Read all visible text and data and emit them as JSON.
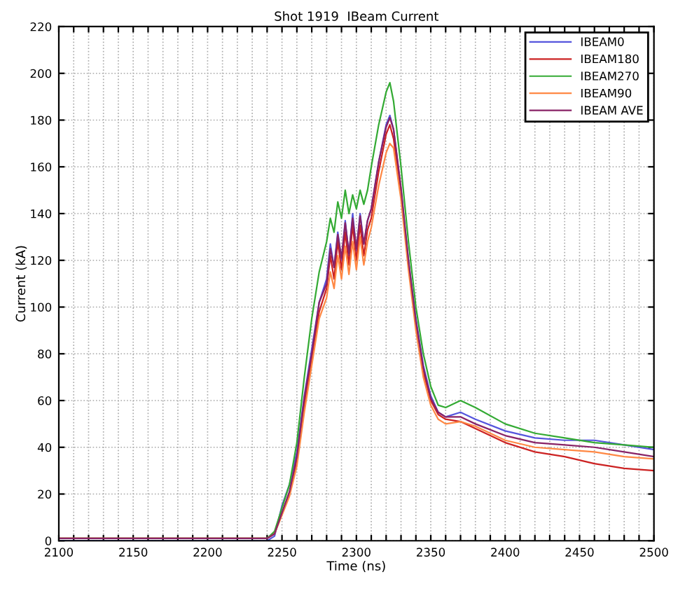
{
  "chart_data": {
    "type": "line",
    "title": "Shot 1919  IBeam Current",
    "xlabel": "Time (ns)",
    "ylabel": "Current (kA)",
    "x": [
      2100,
      2240,
      2245,
      2250,
      2255,
      2260,
      2265,
      2270,
      2275,
      2280,
      2282.5,
      2285,
      2287.5,
      2290,
      2292.5,
      2295,
      2297.5,
      2300,
      2302.5,
      2305,
      2307.5,
      2310,
      2315,
      2320,
      2322.5,
      2325,
      2330,
      2335,
      2340,
      2345,
      2350,
      2355,
      2360,
      2370,
      2380,
      2400,
      2420,
      2440,
      2460,
      2480,
      2500
    ],
    "series": [
      {
        "name": "IBEAM0",
        "color": "#5555dd",
        "values": [
          0,
          0,
          2,
          15,
          24,
          38,
          62,
          82,
          102,
          112,
          127,
          117,
          132,
          120,
          137,
          122,
          140,
          124,
          140,
          127,
          137,
          142,
          162,
          178,
          182,
          176,
          150,
          120,
          95,
          75,
          62,
          55,
          53,
          55,
          52,
          47,
          44,
          43,
          43,
          41,
          39
        ]
      },
      {
        "name": "IBEAM180",
        "color": "#cc2222",
        "values": [
          1,
          1,
          3,
          12,
          20,
          34,
          58,
          78,
          98,
          108,
          122,
          112,
          128,
          116,
          132,
          118,
          135,
          120,
          135,
          122,
          133,
          138,
          158,
          174,
          178,
          172,
          148,
          118,
          92,
          72,
          60,
          54,
          52,
          51,
          48,
          42,
          38,
          36,
          33,
          31,
          30
        ]
      },
      {
        "name": "IBEAM270",
        "color": "#33aa33",
        "values": [
          1,
          1,
          4,
          14,
          24,
          42,
          70,
          95,
          115,
          128,
          138,
          132,
          145,
          138,
          150,
          140,
          148,
          142,
          150,
          144,
          150,
          160,
          178,
          192,
          196,
          188,
          160,
          128,
          100,
          80,
          66,
          58,
          57,
          60,
          57,
          50,
          46,
          44,
          42,
          41,
          40
        ]
      },
      {
        "name": "IBEAM90",
        "color": "#ff8844",
        "values": [
          1,
          1,
          3,
          11,
          19,
          32,
          55,
          75,
          95,
          104,
          115,
          108,
          122,
          112,
          126,
          114,
          128,
          116,
          130,
          118,
          128,
          134,
          152,
          166,
          170,
          168,
          146,
          116,
          90,
          70,
          58,
          52,
          50,
          51,
          49,
          43,
          40,
          39,
          38,
          36,
          35
        ]
      },
      {
        "name": "IBEAM AVE",
        "color": "#882266",
        "values": [
          1,
          1,
          3,
          12,
          21,
          36,
          61,
          80,
          102,
          110,
          125,
          117,
          131,
          121,
          136,
          123,
          138,
          125,
          139,
          127,
          137,
          142,
          162,
          177,
          181,
          176,
          151,
          120,
          94,
          74,
          61,
          55,
          53,
          53,
          50,
          45,
          42,
          41,
          40,
          38,
          36
        ]
      }
    ],
    "xlim": [
      2100,
      2500
    ],
    "xticks": [
      2100,
      {
        "value": 2110,
        "label": null
      },
      {
        "value": 2120,
        "label": null
      },
      {
        "value": 2130,
        "label": null
      },
      {
        "value": 2140,
        "label": null
      },
      2150,
      {
        "value": 2160,
        "label": null
      },
      {
        "value": 2170,
        "label": null
      },
      {
        "value": 2180,
        "label": null
      },
      {
        "value": 2190,
        "label": null
      },
      2200,
      {
        "value": 2210,
        "label": null
      },
      {
        "value": 2220,
        "label": null
      },
      {
        "value": 2230,
        "label": null
      },
      {
        "value": 2240,
        "label": null
      },
      2250,
      {
        "value": 2260,
        "label": null
      },
      {
        "value": 2270,
        "label": null
      },
      {
        "value": 2280,
        "label": null
      },
      {
        "value": 2290,
        "label": null
      },
      2300,
      {
        "value": 2310,
        "label": null
      },
      {
        "value": 2320,
        "label": null
      },
      {
        "value": 2330,
        "label": null
      },
      {
        "value": 2340,
        "label": null
      },
      2350,
      {
        "value": 2360,
        "label": null
      },
      {
        "value": 2370,
        "label": null
      },
      {
        "value": 2380,
        "label": null
      },
      {
        "value": 2390,
        "label": null
      },
      2400,
      {
        "value": 2410,
        "label": null
      },
      {
        "value": 2420,
        "label": null
      },
      {
        "value": 2430,
        "label": null
      },
      {
        "value": 2440,
        "label": null
      },
      2450,
      {
        "value": 2460,
        "label": null
      },
      {
        "value": 2470,
        "label": null
      },
      {
        "value": 2480,
        "label": null
      },
      {
        "value": 2490,
        "label": null
      },
      2500
    ],
    "ylim": [
      0,
      220
    ],
    "yticks": [
      0,
      20,
      40,
      60,
      80,
      100,
      120,
      140,
      160,
      180,
      200,
      220
    ],
    "grid": true,
    "legend": "top right",
    "line_style": "solid",
    "marker": "none"
  }
}
